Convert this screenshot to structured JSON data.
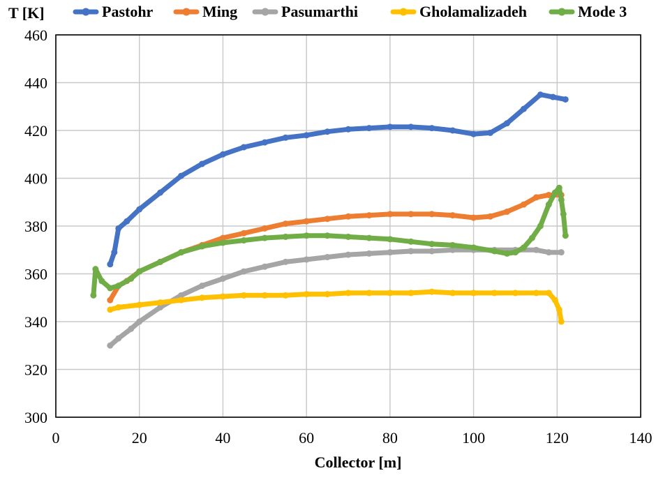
{
  "chart_data": {
    "type": "line",
    "title": "",
    "xlabel": "Collector [m]",
    "ylabel": "T [K]",
    "xlim": [
      0,
      140
    ],
    "ylim": [
      300,
      460
    ],
    "xticks": [
      0,
      20,
      40,
      60,
      80,
      100,
      120,
      140
    ],
    "yticks": [
      300,
      320,
      340,
      360,
      380,
      400,
      420,
      440,
      460
    ],
    "grid": true,
    "legend_position": "top",
    "series": [
      {
        "name": "Pastohr",
        "color": "#4472c4",
        "x": [
          13,
          14,
          15,
          17,
          20,
          25,
          30,
          35,
          40,
          45,
          50,
          55,
          60,
          65,
          70,
          75,
          80,
          85,
          90,
          95,
          100,
          104,
          108,
          112,
          116,
          119,
          122
        ],
        "y": [
          364,
          369,
          379,
          382,
          387,
          394,
          401,
          406,
          410,
          413,
          415,
          417,
          418,
          419.5,
          420.5,
          421,
          421.5,
          421.5,
          421,
          420,
          418.5,
          419,
          423,
          429,
          435,
          434,
          433
        ]
      },
      {
        "name": "Ming",
        "color": "#ed7d31",
        "x": [
          13,
          15,
          17,
          20,
          25,
          30,
          35,
          40,
          45,
          50,
          55,
          60,
          65,
          70,
          75,
          80,
          85,
          90,
          95,
          100,
          104,
          108,
          112,
          115,
          118,
          121
        ],
        "y": [
          349,
          355,
          357,
          361,
          365,
          369,
          372,
          375,
          377,
          379,
          381,
          382,
          383,
          384,
          384.5,
          385,
          385,
          385,
          384.5,
          383.5,
          384,
          386,
          389,
          392,
          393,
          393
        ]
      },
      {
        "name": "Pasumarthi",
        "color": "#a5a5a5",
        "x": [
          13,
          15,
          18,
          20,
          25,
          30,
          35,
          40,
          45,
          50,
          55,
          60,
          65,
          70,
          75,
          80,
          85,
          90,
          95,
          100,
          105,
          110,
          115,
          118,
          121
        ],
        "y": [
          330,
          333,
          337,
          340,
          346,
          351,
          355,
          358,
          361,
          363,
          365,
          366,
          367,
          368,
          368.5,
          369,
          369.5,
          369.5,
          370,
          370,
          370,
          370,
          370,
          369,
          369
        ]
      },
      {
        "name": "Gholamalizadeh",
        "color": "#ffc000",
        "x": [
          13,
          15,
          20,
          25,
          30,
          35,
          40,
          45,
          50,
          55,
          60,
          65,
          70,
          75,
          80,
          85,
          90,
          95,
          100,
          105,
          110,
          115,
          118,
          119.5,
          120.5,
          121
        ],
        "y": [
          345,
          346,
          347,
          348,
          349,
          350,
          350.5,
          351,
          351,
          351,
          351.5,
          351.5,
          352,
          352,
          352,
          352,
          352.5,
          352,
          352,
          352,
          352,
          352,
          352,
          349,
          345,
          340
        ]
      },
      {
        "name": "Mode 3",
        "color": "#70ad47",
        "x": [
          9,
          9.5,
          11,
          13,
          15,
          18,
          20,
          25,
          30,
          35,
          40,
          45,
          50,
          55,
          60,
          65,
          70,
          75,
          80,
          85,
          90,
          95,
          100,
          105,
          108,
          110,
          112,
          114,
          116,
          118,
          119.5,
          120.5,
          121,
          121.5,
          122
        ],
        "y": [
          351,
          362,
          357,
          354,
          355,
          358,
          361,
          365,
          369,
          371.5,
          373,
          374,
          375,
          375.5,
          376,
          376,
          375.5,
          375,
          374.5,
          373.5,
          372.5,
          372,
          371,
          369.5,
          368.5,
          369,
          371,
          375,
          380,
          389,
          394,
          396,
          391,
          385,
          376
        ]
      }
    ]
  }
}
